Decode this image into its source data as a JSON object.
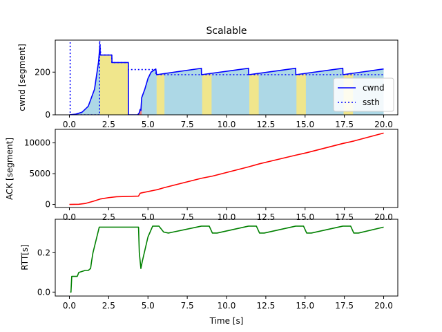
{
  "figure": {
    "title": "Scalable"
  },
  "colors": {
    "cwnd": "#0000ff",
    "ssth": "#0000ff",
    "ack": "#ff0000",
    "rtt": "#008000",
    "fill_normal": "#add8e6",
    "fill_recovery": "#f0e68c",
    "fill_loss": "#f08080"
  },
  "chart_data": [
    {
      "type": "line",
      "xlabel": "",
      "ylabel": "cwnd [segment]",
      "xlim": [
        -0.9,
        20.9
      ],
      "ylim": [
        0,
        350
      ],
      "xticks": [
        "0.0",
        "2.5",
        "5.0",
        "7.5",
        "10.0",
        "12.5",
        "15.0",
        "17.5",
        "20.0"
      ],
      "yticks": [
        "0",
        "200"
      ],
      "legend": {
        "placement": "lower-right",
        "entries": [
          "cwnd",
          "ssth"
        ]
      },
      "series": [
        {
          "name": "cwnd",
          "style": "solid",
          "x": [
            0,
            0.4,
            0.8,
            1.2,
            1.6,
            1.85,
            1.95,
            1.96,
            2.7,
            2.71,
            3.75,
            3.76,
            4.35,
            4.45,
            4.5,
            4.55,
            4.6,
            4.8,
            5.0,
            5.2,
            5.4,
            5.5,
            5.55,
            8.4,
            8.41,
            11.4,
            11.41,
            14.4,
            14.41,
            17.4,
            17.41,
            20.0
          ],
          "y": [
            0,
            3,
            12,
            40,
            120,
            245,
            330,
            280,
            280,
            245,
            245,
            0,
            0,
            10,
            25,
            20,
            80,
            120,
            170,
            200,
            210,
            215,
            188,
            218,
            188,
            218,
            188,
            218,
            188,
            218,
            188,
            215
          ]
        },
        {
          "name": "ssth",
          "style": "dotted",
          "x": [
            0.05,
            0.05,
            0.1,
            1.92,
            1.92,
            2.0,
            2.7,
            2.7,
            3.75,
            3.75,
            5.5,
            5.5,
            20.0
          ],
          "y": [
            340,
            0,
            0,
            0,
            355,
            280,
            280,
            245,
            245,
            212,
            212,
            188,
            188
          ]
        }
      ],
      "recovery_intervals": [
        [
          1.95,
          3.75
        ],
        [
          5.55,
          6.05
        ],
        [
          8.45,
          9.05
        ],
        [
          11.45,
          12.05
        ],
        [
          14.45,
          15.05
        ],
        [
          17.45,
          18.05
        ]
      ],
      "loss_intervals": [
        [
          4.35,
          4.6
        ]
      ]
    },
    {
      "type": "line",
      "xlabel": "",
      "ylabel": "ACK [segment]",
      "xlim": [
        -0.9,
        20.9
      ],
      "ylim": [
        -500,
        12200
      ],
      "xticks": [
        "0.0",
        "2.5",
        "5.0",
        "7.5",
        "10.0",
        "12.5",
        "15.0",
        "17.5",
        "20.0"
      ],
      "yticks": [
        "0",
        "5000",
        "10000"
      ],
      "series": [
        {
          "name": "",
          "x": [
            0,
            0.6,
            1.0,
            1.5,
            2.0,
            2.5,
            3.0,
            3.75,
            4.4,
            4.5,
            4.55,
            5.5,
            5.6,
            6.0,
            8.4,
            9.1,
            11.4,
            12.1,
            14.4,
            15.1,
            17.4,
            18.1,
            20.0
          ],
          "y": [
            0,
            30,
            150,
            500,
            900,
            1100,
            1250,
            1300,
            1350,
            1800,
            1850,
            2350,
            2400,
            2700,
            4250,
            4600,
            6100,
            6600,
            8000,
            8400,
            9900,
            10300,
            11600
          ]
        }
      ]
    },
    {
      "type": "line",
      "xlabel": "Time [s]",
      "ylabel": "RTT[s]",
      "xlim": [
        -0.9,
        20.9
      ],
      "ylim": [
        -0.02,
        0.37
      ],
      "xticks": [
        "0.0",
        "2.5",
        "5.0",
        "7.5",
        "10.0",
        "12.5",
        "15.0",
        "17.5",
        "20.0"
      ],
      "yticks": [
        "0.0",
        "0.2"
      ],
      "series": [
        {
          "name": "",
          "x": [
            0.05,
            0.1,
            0.15,
            0.5,
            0.6,
            1.0,
            1.2,
            1.35,
            1.4,
            1.5,
            1.9,
            2.0,
            4.4,
            4.45,
            4.55,
            4.65,
            5.0,
            5.3,
            5.5,
            5.7,
            6.0,
            6.3,
            6.6,
            8.4,
            8.9,
            9.1,
            9.4,
            11.4,
            11.9,
            12.1,
            12.4,
            14.4,
            14.9,
            15.1,
            15.4,
            17.4,
            17.9,
            18.1,
            18.4,
            20.0
          ],
          "y": [
            0.0,
            0.0,
            0.08,
            0.08,
            0.1,
            0.11,
            0.11,
            0.12,
            0.15,
            0.2,
            0.33,
            0.33,
            0.33,
            0.2,
            0.12,
            0.16,
            0.28,
            0.335,
            0.335,
            0.335,
            0.305,
            0.3,
            0.305,
            0.335,
            0.335,
            0.3,
            0.3,
            0.335,
            0.335,
            0.3,
            0.3,
            0.335,
            0.335,
            0.3,
            0.3,
            0.335,
            0.335,
            0.3,
            0.3,
            0.33
          ]
        }
      ]
    }
  ]
}
